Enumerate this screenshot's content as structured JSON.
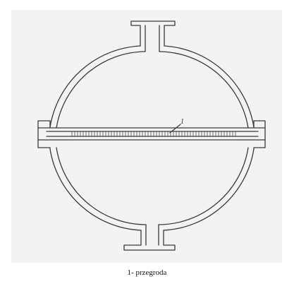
{
  "diagram": {
    "callout_number": "1",
    "caption": "1- przegroda",
    "line_color": "#3a3a3a",
    "background_color": "#f3f3f3"
  }
}
